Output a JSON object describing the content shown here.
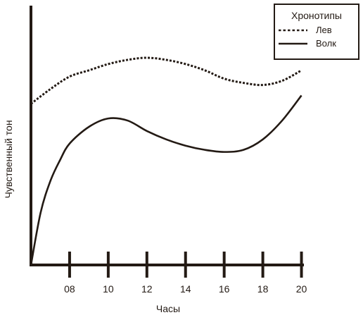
{
  "chart_data": {
    "type": "line",
    "title": "",
    "xlabel": "Часы",
    "ylabel": "Чувственный тон",
    "xlim": [
      6,
      21
    ],
    "ylim": [
      0,
      100
    ],
    "x_ticks": [
      8,
      10,
      12,
      14,
      16,
      18,
      20
    ],
    "x_tick_labels": [
      "08",
      "10",
      "12",
      "14",
      "16",
      "18",
      "20"
    ],
    "grid": false,
    "legend": {
      "title": "Хронотипы",
      "position": "top-right"
    },
    "series": [
      {
        "name": "Лев",
        "style": "dotted",
        "x": [
          6,
          7,
          8,
          9,
          10,
          11,
          12,
          13,
          14,
          15,
          16,
          17,
          18,
          19,
          20
        ],
        "y": [
          77,
          84,
          90,
          93,
          96,
          98,
          99,
          98,
          96,
          93,
          89,
          87,
          86,
          88,
          93
        ]
      },
      {
        "name": "Волк",
        "style": "solid",
        "x": [
          6,
          6.5,
          7,
          7.5,
          8,
          9,
          10,
          11,
          12,
          13,
          14,
          15,
          16,
          17,
          18,
          19,
          20
        ],
        "y": [
          0,
          25,
          40,
          50,
          58,
          66,
          70,
          69,
          64,
          60,
          57,
          55,
          54,
          55,
          60,
          69,
          81
        ]
      }
    ],
    "colors": {
      "line": "#231a14",
      "background": "#ffffff"
    }
  }
}
